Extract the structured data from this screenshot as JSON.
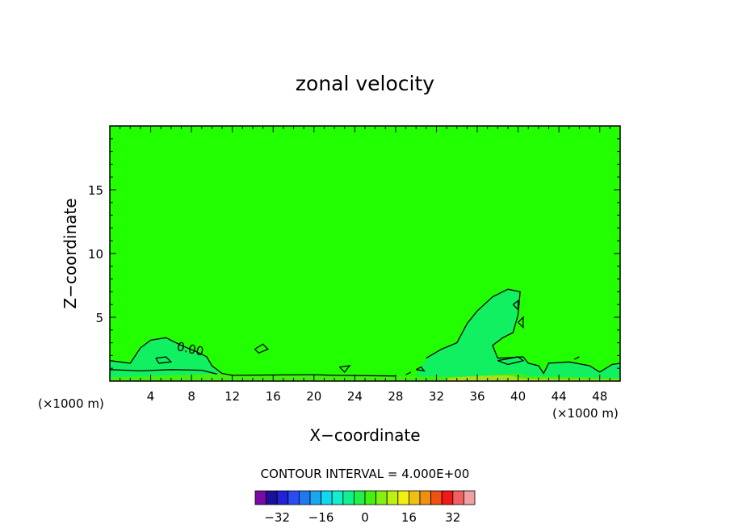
{
  "chart_data": {
    "type": "contour",
    "title": "zonal velocity",
    "xlabel": "X−coordinate",
    "ylabel": "Z−coordinate",
    "x_unit_label": "(×1000 m)",
    "x_unit_label_right": "(×1000 m)",
    "xlim": [
      0,
      50
    ],
    "ylim": [
      0,
      20
    ],
    "x_ticks": [
      4,
      8,
      12,
      16,
      20,
      24,
      28,
      32,
      36,
      40,
      44,
      48
    ],
    "y_ticks": [
      5,
      10,
      15
    ],
    "contour_label": "0.00",
    "contour_interval_text": "CONTOUR INTERVAL = 4.000E+00",
    "colorbar": {
      "levels": [
        -36,
        -32,
        -28,
        -24,
        -20,
        -16,
        -12,
        -8,
        -4,
        0,
        4,
        8,
        12,
        16,
        20,
        24,
        28,
        32,
        36
      ],
      "tick_labels": [
        "−32",
        "−16",
        "0",
        "16",
        "32"
      ],
      "tick_values": [
        -32,
        -16,
        0,
        16,
        32
      ],
      "colors": [
        "#7a0aa8",
        "#1c0f9c",
        "#2222d8",
        "#2a4cf0",
        "#1f78f0",
        "#18a8f0",
        "#10d8f0",
        "#10f0d0",
        "#10f090",
        "#22f048",
        "#44f010",
        "#86f010",
        "#c0f010",
        "#f0f010",
        "#f0c010",
        "#f09010",
        "#f05010",
        "#f01818",
        "#f06060",
        "#f0a0a0"
      ]
    },
    "background_color": "#22ff00",
    "regions": [
      {
        "name": "weak-positive-left",
        "color": "#10f060",
        "points": [
          [
            0,
            1.6
          ],
          [
            2,
            1.4
          ],
          [
            3,
            2.6
          ],
          [
            4,
            3.2
          ],
          [
            5.5,
            3.4
          ],
          [
            7,
            2.8
          ],
          [
            8.5,
            2.3
          ],
          [
            9.5,
            1.9
          ],
          [
            10,
            1.2
          ],
          [
            11,
            0.6
          ],
          [
            12,
            0.45
          ],
          [
            20,
            0.5
          ],
          [
            22,
            0.45
          ],
          [
            28,
            0.4
          ],
          [
            28,
            0
          ],
          [
            0,
            0
          ]
        ]
      },
      {
        "name": "weak-positive-right",
        "color": "#10f060",
        "points": [
          [
            31,
            1.8
          ],
          [
            32.5,
            2.5
          ],
          [
            34,
            3.0
          ],
          [
            35,
            4.5
          ],
          [
            36,
            5.5
          ],
          [
            37.5,
            6.6
          ],
          [
            39,
            7.2
          ],
          [
            40.2,
            7.0
          ],
          [
            40,
            5.2
          ],
          [
            39.5,
            3.8
          ],
          [
            38.5,
            3.4
          ],
          [
            37.5,
            2.8
          ],
          [
            38,
            1.8
          ],
          [
            40.5,
            1.9
          ],
          [
            41,
            1.4
          ],
          [
            42,
            1.2
          ],
          [
            42.5,
            0.6
          ],
          [
            43,
            1.4
          ],
          [
            45,
            1.5
          ],
          [
            47,
            1.2
          ],
          [
            48,
            0.7
          ],
          [
            49.2,
            1.3
          ],
          [
            50,
            1.4
          ],
          [
            50,
            0
          ],
          [
            30,
            0
          ],
          [
            30,
            0.3
          ]
        ]
      },
      {
        "name": "near-surface-band",
        "color": "#44f010",
        "points": [
          [
            0,
            0.3
          ],
          [
            10,
            0.55
          ],
          [
            28,
            0.35
          ],
          [
            34,
            0.35
          ],
          [
            38,
            0.5
          ],
          [
            40,
            0.6
          ],
          [
            41,
            0.4
          ],
          [
            50,
            0.25
          ],
          [
            50,
            0
          ],
          [
            0,
            0
          ]
        ]
      },
      {
        "name": "surface-layer",
        "color": "#a8e020",
        "points": [
          [
            33,
            0.25
          ],
          [
            36,
            0.4
          ],
          [
            39,
            0.45
          ],
          [
            40.5,
            0.2
          ],
          [
            50,
            0.1
          ],
          [
            50,
            0
          ],
          [
            33,
            0
          ]
        ]
      }
    ],
    "contours": [
      [
        [
          0,
          1.6
        ],
        [
          2,
          1.4
        ],
        [
          3,
          2.6
        ],
        [
          4,
          3.2
        ],
        [
          5.5,
          3.4
        ],
        [
          7,
          2.8
        ],
        [
          8.5,
          2.3
        ],
        [
          9.5,
          1.9
        ],
        [
          10,
          1.2
        ],
        [
          11,
          0.6
        ],
        [
          12,
          0.45
        ],
        [
          20,
          0.5
        ],
        [
          22,
          0.45
        ],
        [
          28,
          0.4
        ]
      ],
      [
        [
          0,
          0.9
        ],
        [
          3,
          0.8
        ],
        [
          6,
          0.9
        ],
        [
          9,
          0.85
        ],
        [
          10.5,
          0.55
        ]
      ],
      [
        [
          4.5,
          1.8
        ],
        [
          5.5,
          1.9
        ],
        [
          6,
          1.5
        ],
        [
          4.8,
          1.4
        ],
        [
          4.5,
          1.8
        ]
      ],
      [
        [
          14.2,
          2.5
        ],
        [
          15,
          2.9
        ],
        [
          15.5,
          2.5
        ],
        [
          14.6,
          2.2
        ],
        [
          14.2,
          2.5
        ]
      ],
      [
        [
          22.5,
          1.1
        ],
        [
          23,
          0.7
        ],
        [
          23.5,
          1.2
        ],
        [
          22.5,
          1.1
        ]
      ],
      [
        [
          31,
          1.8
        ],
        [
          32.5,
          2.5
        ],
        [
          34,
          3.0
        ],
        [
          35,
          4.5
        ],
        [
          36,
          5.5
        ],
        [
          37.5,
          6.6
        ],
        [
          39,
          7.2
        ],
        [
          40.2,
          7.0
        ],
        [
          40,
          5.2
        ],
        [
          39.5,
          3.8
        ],
        [
          38.5,
          3.4
        ],
        [
          37.5,
          2.8
        ],
        [
          38,
          1.8
        ],
        [
          40.5,
          1.9
        ],
        [
          41,
          1.4
        ],
        [
          42,
          1.2
        ],
        [
          42.5,
          0.6
        ],
        [
          43,
          1.4
        ],
        [
          45,
          1.5
        ],
        [
          47,
          1.2
        ],
        [
          48,
          0.7
        ],
        [
          49.2,
          1.3
        ],
        [
          50,
          1.4
        ]
      ],
      [
        [
          38,
          1.6
        ],
        [
          40,
          1.9
        ],
        [
          40.5,
          1.6
        ],
        [
          39,
          1.3
        ],
        [
          38,
          1.6
        ]
      ],
      [
        [
          39.5,
          6.0
        ],
        [
          40,
          6.3
        ],
        [
          40,
          5.6
        ],
        [
          39.5,
          6.0
        ]
      ],
      [
        [
          40,
          4.6
        ],
        [
          40.5,
          5.0
        ],
        [
          40.5,
          4.2
        ],
        [
          40,
          4.6
        ]
      ],
      [
        [
          30,
          0.9
        ],
        [
          30.5,
          1.1
        ],
        [
          30.8,
          0.8
        ],
        [
          30,
          0.9
        ]
      ],
      [
        [
          29,
          0.5
        ],
        [
          29.5,
          0.7
        ]
      ],
      [
        [
          45.5,
          1.7
        ],
        [
          46,
          1.9
        ]
      ]
    ]
  }
}
